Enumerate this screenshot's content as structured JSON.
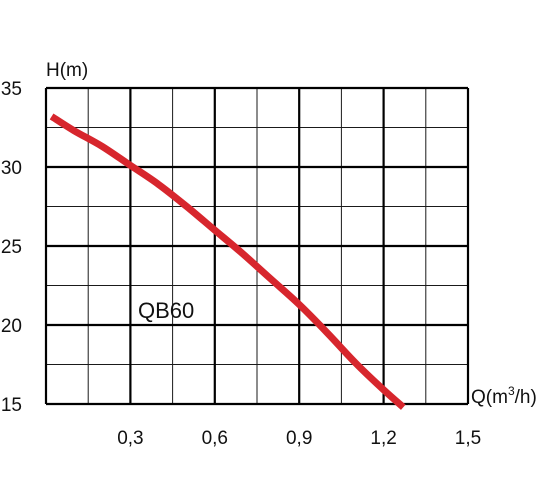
{
  "chart_data": {
    "type": "line",
    "title": "",
    "ylabel": "H(m)",
    "xlabel_parts": [
      "Q(m",
      "3",
      "/h)"
    ],
    "xlim": [
      0,
      1.5
    ],
    "ylim": [
      15,
      35
    ],
    "x_ticks": [
      "0,3",
      "0,6",
      "0,9",
      "1,2",
      "1,5"
    ],
    "y_ticks": [
      "15",
      "20",
      "25",
      "30",
      "35"
    ],
    "grid": true,
    "series": [
      {
        "name": "QB60",
        "color": "#d7262d",
        "x": [
          0.02,
          0.1,
          0.2,
          0.3,
          0.4,
          0.5,
          0.6,
          0.7,
          0.8,
          0.9,
          1.0,
          1.1,
          1.2,
          1.27
        ],
        "y": [
          33.2,
          32.3,
          31.3,
          30.1,
          28.9,
          27.5,
          26.0,
          24.5,
          22.9,
          21.3,
          19.5,
          17.6,
          15.9,
          14.8
        ]
      }
    ]
  }
}
